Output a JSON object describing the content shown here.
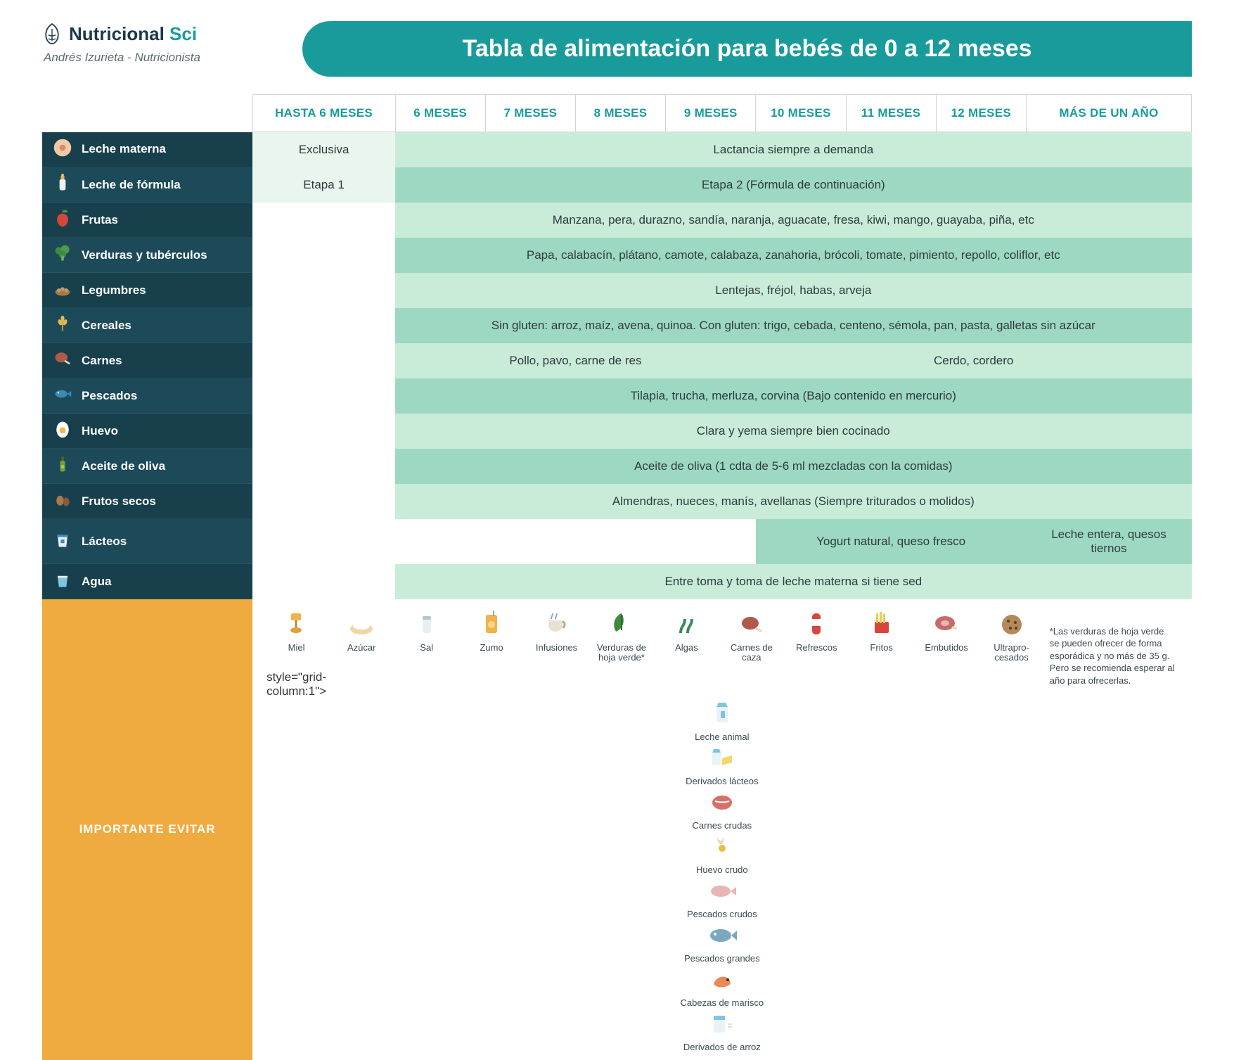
{
  "brand": {
    "name1": "Nutricional",
    "name2": "Sci",
    "author": "Andrés Izurieta - Nutricionista"
  },
  "title": "Tabla de alimentación para bebés de 0 a 12 meses",
  "columns": [
    "HASTA 6 MESES",
    "6 MESES",
    "7 MESES",
    "8 MESES",
    "9 MESES",
    "10 MESES",
    "11 MESES",
    "12 MESES",
    "MÁS DE UN AÑO"
  ],
  "rows": [
    {
      "icon": "breast",
      "label": "Leche materna",
      "cells": [
        {
          "span": 1,
          "cls": "fill0",
          "text": "Exclusiva"
        },
        {
          "span": 8,
          "cls": "fill",
          "text": "Lactancia siempre a demanda"
        }
      ]
    },
    {
      "icon": "bottle",
      "label": "Leche de fórmula",
      "alt": true,
      "cells": [
        {
          "span": 1,
          "cls": "fill0",
          "text": "Etapa 1"
        },
        {
          "span": 8,
          "cls": "fill2",
          "text": "Etapa 2 (Fórmula de continuación)"
        }
      ]
    },
    {
      "icon": "apple",
      "label": "Frutas",
      "cells": [
        {
          "span": 1,
          "cls": "",
          "text": ""
        },
        {
          "span": 8,
          "cls": "fill",
          "text": "Manzana, pera, durazno, sandía, naranja, aguacate, fresa, kiwi, mango, guayaba, piña, etc"
        }
      ]
    },
    {
      "icon": "broccoli",
      "label": "Verduras y tubérculos",
      "alt": true,
      "cells": [
        {
          "span": 1,
          "cls": "",
          "text": ""
        },
        {
          "span": 8,
          "cls": "fill2",
          "text": "Papa, calabacín, plátano, camote, calabaza, zanahoria, brócoli, tomate, pimiento, repollo, coliflor, etc"
        }
      ]
    },
    {
      "icon": "legume",
      "label": "Legumbres",
      "cells": [
        {
          "span": 1,
          "cls": "",
          "text": ""
        },
        {
          "span": 8,
          "cls": "fill",
          "text": "Lentejas, fréjol, habas, arveja"
        }
      ]
    },
    {
      "icon": "wheat",
      "label": "Cereales",
      "alt": true,
      "cells": [
        {
          "span": 1,
          "cls": "",
          "text": ""
        },
        {
          "span": 8,
          "cls": "fill2",
          "text": "Sin gluten: arroz, maíz, avena, quinoa. Con gluten: trigo, cebada, centeno, sémola, pan, pasta, galletas sin azúcar"
        }
      ]
    },
    {
      "icon": "meat",
      "label": "Carnes",
      "cells": [
        {
          "span": 1,
          "cls": "",
          "text": ""
        },
        {
          "span": 4,
          "cls": "fill",
          "text": "Pollo, pavo, carne de res"
        },
        {
          "span": 4,
          "cls": "fill",
          "text": "Cerdo, cordero"
        }
      ]
    },
    {
      "icon": "fish",
      "label": "Pescados",
      "alt": true,
      "cells": [
        {
          "span": 1,
          "cls": "",
          "text": ""
        },
        {
          "span": 8,
          "cls": "fill2",
          "text": "Tilapia, trucha, merluza, corvina (Bajo contenido en mercurio)"
        }
      ]
    },
    {
      "icon": "egg",
      "label": "Huevo",
      "cells": [
        {
          "span": 1,
          "cls": "",
          "text": ""
        },
        {
          "span": 8,
          "cls": "fill",
          "text": "Clara y yema siempre bien cocinado"
        }
      ]
    },
    {
      "icon": "oil",
      "label": "Aceite de oliva",
      "alt": true,
      "cells": [
        {
          "span": 1,
          "cls": "",
          "text": ""
        },
        {
          "span": 8,
          "cls": "fill2",
          "text": "Aceite de oliva (1 cdta  de 5-6 ml mezcladas con la comidas)"
        }
      ]
    },
    {
      "icon": "nuts",
      "label": "Frutos secos",
      "cells": [
        {
          "span": 1,
          "cls": "",
          "text": ""
        },
        {
          "span": 8,
          "cls": "fill",
          "text": "Almendras, nueces, manís, avellanas (Siempre triturados o molidos)"
        }
      ]
    },
    {
      "icon": "yogurt",
      "label": "Lácteos",
      "alt": true,
      "cells": [
        {
          "span": 1,
          "cls": "",
          "text": ""
        },
        {
          "span": 4,
          "cls": "",
          "text": ""
        },
        {
          "span": 3,
          "cls": "fill2",
          "text": "Yogurt natural, queso fresco"
        },
        {
          "span": 1,
          "cls": "fill2",
          "text": "Leche entera, quesos tiernos"
        }
      ]
    },
    {
      "icon": "water",
      "label": "Agua",
      "cells": [
        {
          "span": 1,
          "cls": "",
          "text": ""
        },
        {
          "span": 8,
          "cls": "fill",
          "text": "Entre toma y toma de leche materna si tiene sed"
        }
      ]
    }
  ],
  "avoid": {
    "label": "IMPORTANTE EVITAR",
    "note": "*Las verduras de hoja verde se pueden ofrecer de forma esporádica y no más de 35 g. Pero se recomienda esperar al año para ofrecerlas.",
    "row1": [
      {
        "icon": "honey",
        "label": "Miel"
      },
      {
        "icon": "sugar",
        "label": "Azúcar"
      },
      {
        "icon": "salt",
        "label": "Sal"
      },
      {
        "icon": "juice",
        "label": "Zumo"
      },
      {
        "icon": "tea",
        "label": "Infusiones"
      },
      {
        "icon": "leafy",
        "label": "Verduras de hoja verde*"
      },
      {
        "icon": "algae",
        "label": "Algas"
      },
      {
        "icon": "game",
        "label": "Carnes de caza"
      }
    ],
    "row1b": [
      {
        "icon": "soda",
        "label": "Refrescos"
      },
      {
        "icon": "fries",
        "label": "Fritos"
      },
      {
        "icon": "ham",
        "label": "Embutidos"
      },
      {
        "icon": "cookie",
        "label": "Ultrapro-cesados"
      }
    ],
    "row2": [
      {
        "icon": "milk",
        "label": "Leche animal"
      },
      {
        "icon": "dairy",
        "label": "Derivados lácteos"
      },
      {
        "icon": "rawmeat",
        "label": "Carnes crudas"
      },
      {
        "icon": "rawegg",
        "label": "Huevo crudo"
      },
      {
        "icon": "rawfish",
        "label": "Pescados crudos"
      },
      {
        "icon": "bigfish",
        "label": "Pescados grandes"
      },
      {
        "icon": "shrimp",
        "label": "Cabezas de marisco"
      },
      {
        "icon": "rice",
        "label": "Derivados de arroz"
      }
    ]
  },
  "colors": {
    "teal": "#1a9b9b",
    "darkTeal": "#17404c",
    "darkTeal2": "#1c4a58",
    "mint": "#c9ecd9",
    "mint2": "#9dd9c2",
    "mint0": "#e8f6ee",
    "amber": "#efab3f"
  }
}
